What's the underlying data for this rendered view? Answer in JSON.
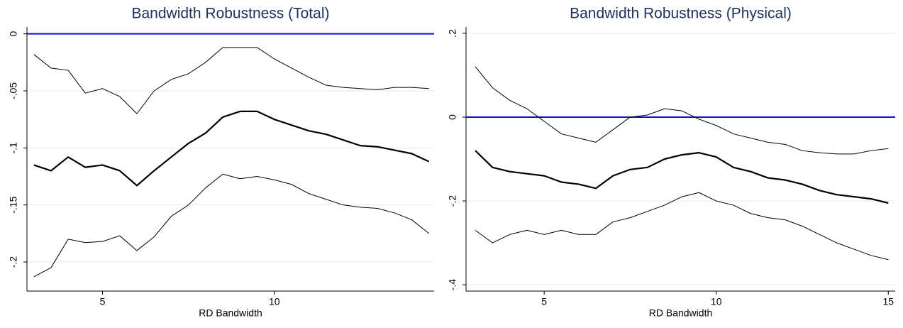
{
  "chart_data": [
    {
      "type": "line",
      "title": "Bandwidth Robustness (Total)",
      "x_label": "RD Bandwidth",
      "x": [
        3,
        3.5,
        4,
        4.5,
        5,
        5.5,
        6,
        6.5,
        7,
        7.5,
        8,
        8.5,
        9,
        9.5,
        10,
        10.5,
        11,
        11.5,
        12,
        12.5,
        13,
        13.5,
        14,
        14.5
      ],
      "series": [
        {
          "color": "#000000",
          "width": 2.2,
          "values": [
            -0.115,
            -0.12,
            -0.108,
            -0.117,
            -0.115,
            -0.12,
            -0.133,
            -0.12,
            -0.108,
            -0.096,
            -0.087,
            -0.073,
            -0.068,
            -0.068,
            -0.075,
            -0.08,
            -0.085,
            -0.088,
            -0.093,
            -0.098,
            -0.099,
            -0.102,
            -0.105,
            -0.112
          ]
        },
        {
          "color": "#000000",
          "width": 1,
          "values": [
            -0.018,
            -0.03,
            -0.032,
            -0.052,
            -0.048,
            -0.055,
            -0.07,
            -0.05,
            -0.04,
            -0.035,
            -0.025,
            -0.012,
            -0.012,
            -0.012,
            -0.022,
            -0.03,
            -0.038,
            -0.045,
            -0.047,
            -0.048,
            -0.049,
            -0.047,
            -0.047,
            -0.048
          ]
        },
        {
          "color": "#000000",
          "width": 1,
          "values": [
            -0.213,
            -0.205,
            -0.18,
            -0.183,
            -0.182,
            -0.177,
            -0.19,
            -0.178,
            -0.16,
            -0.15,
            -0.135,
            -0.123,
            -0.127,
            -0.125,
            -0.128,
            -0.132,
            -0.14,
            -0.145,
            -0.15,
            -0.152,
            -0.153,
            -0.157,
            -0.163,
            -0.175
          ]
        }
      ],
      "reference_line": 0,
      "reference_color": "#1010d0",
      "xlim": [
        2.8,
        14.65
      ],
      "xticks": [
        5,
        10
      ],
      "ylim": [
        -0.2255,
        0.006
      ],
      "yticks": [
        0,
        {
          "value": -0.05,
          "label": "-.05"
        },
        {
          "value": -0.1,
          "label": "-.1"
        },
        {
          "value": -0.15,
          "label": "-.15"
        },
        {
          "value": -0.2,
          "label": "-.2"
        }
      ],
      "grid": true
    },
    {
      "type": "line",
      "title": "Bandwidth Robustness (Physical)",
      "x_label": "RD Bandwidth",
      "x": [
        3,
        3.5,
        4,
        4.5,
        5,
        5.5,
        6,
        6.5,
        7,
        7.5,
        8,
        8.5,
        9,
        9.5,
        10,
        10.5,
        11,
        11.5,
        12,
        12.5,
        13,
        13.5,
        14,
        14.5,
        15
      ],
      "series": [
        {
          "color": "#000000",
          "width": 2.2,
          "values": [
            -0.08,
            -0.12,
            -0.13,
            -0.135,
            -0.14,
            -0.155,
            -0.16,
            -0.17,
            -0.14,
            -0.125,
            -0.12,
            -0.1,
            -0.09,
            -0.085,
            -0.095,
            -0.12,
            -0.13,
            -0.145,
            -0.15,
            -0.16,
            -0.175,
            -0.185,
            -0.19,
            -0.195,
            -0.205
          ]
        },
        {
          "color": "#000000",
          "width": 1,
          "values": [
            0.12,
            0.07,
            0.04,
            0.02,
            -0.01,
            -0.04,
            -0.05,
            -0.06,
            -0.03,
            0.0,
            0.005,
            0.02,
            0.015,
            -0.005,
            -0.02,
            -0.04,
            -0.05,
            -0.06,
            -0.065,
            -0.08,
            -0.085,
            -0.088,
            -0.088,
            -0.08,
            -0.075
          ]
        },
        {
          "color": "#000000",
          "width": 1,
          "values": [
            -0.27,
            -0.3,
            -0.28,
            -0.27,
            -0.28,
            -0.27,
            -0.28,
            -0.28,
            -0.25,
            -0.24,
            -0.225,
            -0.21,
            -0.19,
            -0.18,
            -0.2,
            -0.21,
            -0.23,
            -0.24,
            -0.245,
            -0.26,
            -0.28,
            -0.3,
            -0.315,
            -0.33,
            -0.34
          ]
        }
      ],
      "reference_line": 0,
      "reference_color": "#1010d0",
      "xlim": [
        2.73,
        15.2
      ],
      "xticks": [
        5,
        10,
        15
      ],
      "ylim": [
        -0.415,
        0.215
      ],
      "yticks": [
        {
          "value": 0.2,
          "label": ".2"
        },
        0,
        {
          "value": -0.2,
          "label": "-.2"
        },
        {
          "value": -0.4,
          "label": "-.4"
        }
      ],
      "grid": true
    }
  ]
}
